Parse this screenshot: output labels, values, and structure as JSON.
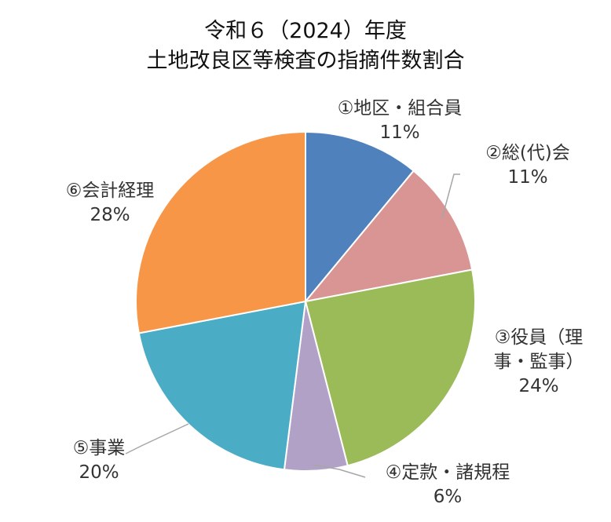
{
  "chart_data": {
    "type": "pie",
    "title": [
      "令和６（2024）年度",
      "土地改良区等検査の指摘件数割合"
    ],
    "categories": [
      "①地区・組合員",
      "②総(代)会",
      "③役員（理事・監事）",
      "④定款・諸規程",
      "⑤事業",
      "⑥会計経理"
    ],
    "label_lines": [
      [
        "①地区・組合員"
      ],
      [
        "②総(代)会"
      ],
      [
        "③役員（理",
        "事・監事）"
      ],
      [
        "④定款・諸規程"
      ],
      [
        "⑤事業"
      ],
      [
        "⑥会計経理"
      ]
    ],
    "values": [
      11,
      11,
      24,
      6,
      20,
      28
    ],
    "value_labels": [
      "11%",
      "11%",
      "24%",
      "6%",
      "20%",
      "28%"
    ],
    "colors": [
      "#4F81BD",
      "#D99594",
      "#9BBB59",
      "#B2A1C7",
      "#4BACC6",
      "#F79646"
    ],
    "start": "12 o'clock",
    "direction": "clockwise",
    "legend": "none"
  }
}
